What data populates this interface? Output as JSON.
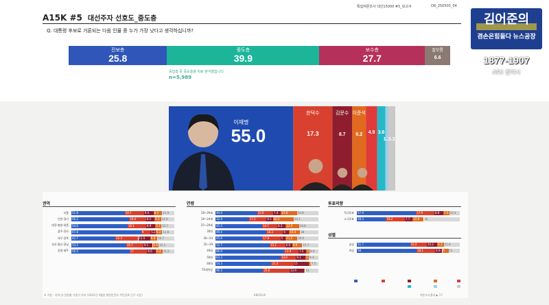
{
  "slide": {
    "code": "A15K #5",
    "title": "대선주자 선호도_중도층",
    "question": "Q. 대통령 후보로 거론되는 다음 인물 중 누가 가장 낫다고 생각하십니까?",
    "meta": [
      "특집여론조사 대선15000 #5_보고서",
      "DR_250505_04"
    ],
    "note": "응답층 중 중도층을 따로 분석했습니다.",
    "sample": "n=5,989",
    "footer_left": "※ 가중 : 지역·성·연령별 가중치 부여 (2025년 4월말 행정안전부 주민등록 인구 기준)",
    "footer_mid": "KBS/RnR",
    "footer_right": "여론조사결과 ▶ 17"
  },
  "overlay": {
    "line1": "김어준의",
    "line2": "겸손은힘들다 뉴스공장",
    "phone": "1877-1907",
    "ars": "ARS 참여시"
  },
  "chart_data": [
    {
      "type": "bar",
      "orientation": "horizontal-stacked",
      "categories": [
        "진보층",
        "중도층",
        "보수층",
        "잘모름"
      ],
      "values": [
        25.8,
        39.9,
        27.7,
        6.6
      ],
      "colors": [
        "#2f56b8",
        "#1db59a",
        "#b5305a",
        "#8a7a72"
      ]
    },
    {
      "type": "bar",
      "orientation": "vertical-stacked-share",
      "categories": [
        "이재명",
        "한덕수",
        "김문수",
        "이준석",
        "",
        "",
        "",
        ""
      ],
      "values": [
        55.0,
        17.3,
        8.7,
        6.2,
        4.9,
        3.6,
        1.2,
        3.2
      ],
      "value_labels": [
        "55.0",
        "17.3",
        "8.7",
        "6.2",
        "4.9",
        "3.6",
        "1.2",
        "3.2"
      ],
      "colors": [
        "#1f4bb0",
        "#d8412f",
        "#8e1e2e",
        "#e06a1f",
        "#e03a3a",
        "#27b8c8",
        "#9ad0e8",
        "#c9c9c9"
      ]
    },
    {
      "type": "bar",
      "orientation": "horizontal-stacked",
      "panel": "권역",
      "categories": [
        "서울",
        "인천·경기",
        "대전·충청·세종",
        "광주·전라",
        "대구·경북",
        "부산·울산·경남",
        "강원·제주"
      ],
      "series": [
        {
          "values": [
            51.8,
            56.2,
            54.6,
            67.8,
            42.7,
            53.2,
            56.5
          ]
        },
        {
          "values": [
            18.7,
            16.4,
            18.1,
            9.0,
            22.3,
            16.7,
            17.0
          ]
        },
        {
          "values": [
            9.4,
            8.2,
            8.9,
            5.2,
            11.5,
            9.1,
            8.6
          ]
        },
        {
          "values": [
            8.2,
            6.3,
            5.7,
            6.2,
            6.8,
            5.9,
            6.4
          ]
        },
        {
          "values": [
            11.9,
            12.9,
            12.7,
            11.8,
            16.7,
            15.1,
            11.5
          ]
        }
      ]
    },
    {
      "type": "bar",
      "orientation": "horizontal-stacked",
      "panel": "연령",
      "categories": [
        "18~29세",
        "18~24세",
        "25~29세",
        "30대",
        "30~34",
        "35~39",
        "40대",
        "50대",
        "60대",
        "70세이상"
      ],
      "series": [
        {
          "values": [
            40.4,
            32.4,
            45.3,
            49.4,
            45.6,
            52.7,
            66.9,
            63.3,
            54.3,
            46.3
          ]
        },
        {
          "values": [
            15.6,
            17.2,
            14.7,
            16.2,
            17.6,
            15.1,
            13.8,
            14.9,
            21.4,
            25.6
          ]
        },
        {
          "values": [
            7.4,
            6.1,
            8.3,
            6.0,
            5.0,
            6.9,
            7.5,
            9.1,
            15.0,
            13.9
          ]
        },
        {
          "values": [
            15.8,
            20.2,
            12.9,
            10.4,
            11.2,
            9.6,
            2.9,
            3.4,
            1.8,
            1.2
          ]
        },
        {
          "values": [
            20.8,
            24.1,
            18.8,
            18.0,
            20.6,
            15.7,
            8.9,
            9.3,
            7.5,
            13.0
          ]
        }
      ]
    },
    {
      "type": "bar",
      "orientation": "horizontal-stacked",
      "panel": "투표의향",
      "categories": [
        "적극투표",
        "소극투표"
      ],
      "series": [
        {
          "values": [
            57.4,
            28.3
          ]
        },
        {
          "values": [
            17.9,
            18.2
          ]
        },
        {
          "values": [
            8.8,
            7.7
          ]
        },
        {
          "values": [
            5.6,
            10.8
          ]
        },
        {
          "values": [
            10.3,
            35.0
          ]
        }
      ]
    },
    {
      "type": "bar",
      "orientation": "horizontal-stacked",
      "panel": "성별",
      "categories": [
        "남성",
        "여성"
      ],
      "series": [
        {
          "values": [
            51.7,
            58.0
          ]
        },
        {
          "values": [
            16.2,
            18.1
          ]
        },
        {
          "values": [
            10.2,
            6.9
          ]
        },
        {
          "values": [
            6.3,
            6.0
          ]
        },
        {
          "values": [
            15.6,
            11.0
          ]
        }
      ]
    }
  ]
}
